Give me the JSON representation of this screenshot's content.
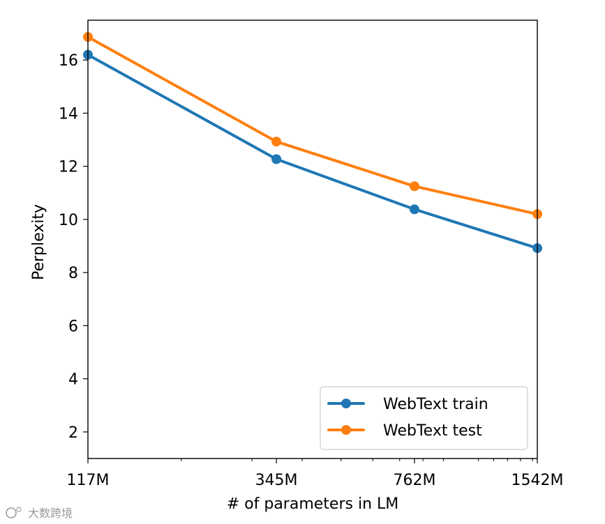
{
  "chart_data": {
    "type": "line",
    "xscale": "log",
    "x": [
      117,
      345,
      762,
      1542
    ],
    "xticklabels": [
      "117M",
      "345M",
      "762M",
      "1542M"
    ],
    "xlabel": "# of parameters in LM",
    "ylabel": "Perplexity",
    "ylim": [
      1,
      17.5
    ],
    "yticks": [
      2,
      4,
      6,
      8,
      10,
      12,
      14,
      16
    ],
    "grid": false,
    "legend": "lower-right",
    "series": [
      {
        "name": "WebText train",
        "color": "#1f77b4",
        "values": [
          16.2,
          12.27,
          10.38,
          8.92
        ]
      },
      {
        "name": "WebText test",
        "color": "#ff7f0e",
        "values": [
          16.87,
          12.93,
          11.25,
          10.2
        ]
      }
    ]
  },
  "watermark": {
    "text": "大数跨境"
  }
}
